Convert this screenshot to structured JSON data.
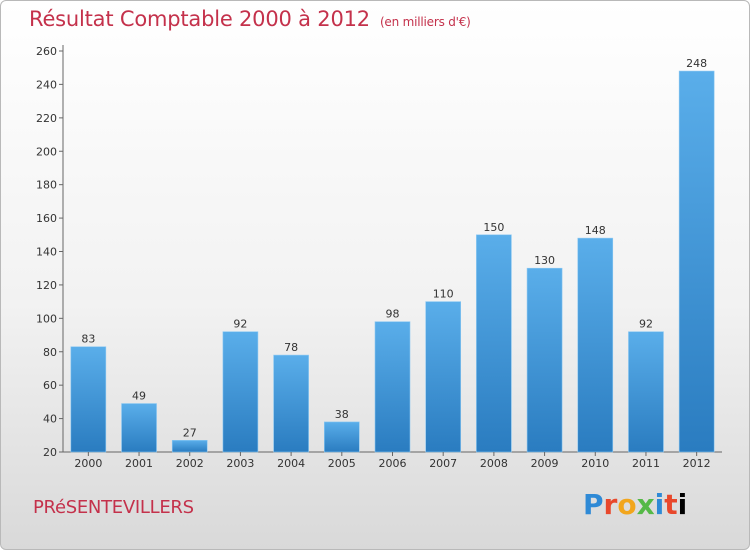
{
  "header": {
    "title": "Résultat Comptable 2000 à 2012",
    "subtitle": "(en milliers d'€)"
  },
  "footer": {
    "commune": "PRéSENTEVILLERS",
    "logo": [
      "P",
      "r",
      "o",
      "x",
      "i",
      "t",
      "i"
    ]
  },
  "colors": {
    "title": "#c4314b",
    "bar_top": "#5aaeea",
    "bar_bottom": "#2a7cc0"
  },
  "chart_data": {
    "type": "bar",
    "title": "Résultat Comptable 2000 à 2012",
    "subtitle": "(en milliers d'€)",
    "categories": [
      "2000",
      "2001",
      "2002",
      "2003",
      "2004",
      "2005",
      "2006",
      "2007",
      "2008",
      "2009",
      "2010",
      "2011",
      "2012"
    ],
    "values": [
      83,
      49,
      27,
      92,
      78,
      38,
      98,
      110,
      150,
      130,
      148,
      92,
      248
    ],
    "xlabel": "",
    "ylabel": "",
    "ylim": [
      20,
      260
    ],
    "yticks": [
      20,
      40,
      60,
      80,
      100,
      120,
      140,
      160,
      180,
      200,
      220,
      240,
      260
    ],
    "grid": false,
    "legend": "none"
  }
}
